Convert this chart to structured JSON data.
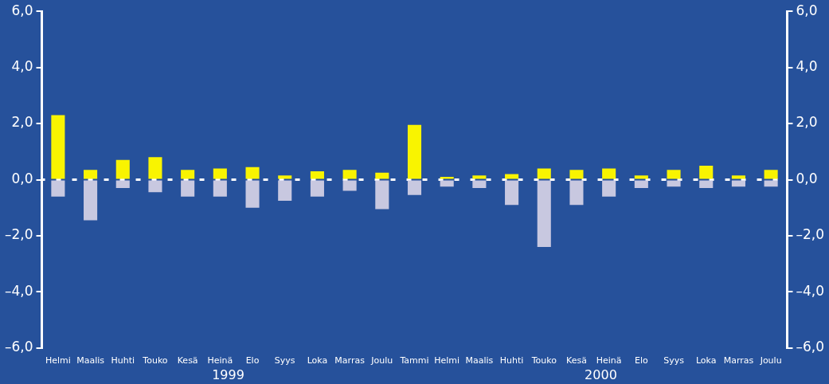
{
  "chart_data": {
    "type": "bar",
    "stacked": true,
    "categories": [
      "Helmi",
      "Maalis",
      "Huhti",
      "Touko",
      "Kesä",
      "Heinä",
      "Elo",
      "Syys",
      "Loka",
      "Marras",
      "Joulu",
      "Tammi",
      "Helmi",
      "Maalis",
      "Huhti",
      "Touko",
      "Kesä",
      "Heinä",
      "Elo",
      "Syys",
      "Loka",
      "Marras",
      "Joulu"
    ],
    "series": [
      {
        "color": "#f9f400",
        "values": [
          2.3,
          0.35,
          0.7,
          0.8,
          0.35,
          0.4,
          0.45,
          0.15,
          0.3,
          0.35,
          0.25,
          1.95,
          0.1,
          0.15,
          0.2,
          0.4,
          0.35,
          0.4,
          0.15,
          0.35,
          0.5,
          0.15,
          0.35
        ]
      },
      {
        "color": "#c8c8e0",
        "values": [
          -0.6,
          -1.45,
          -0.3,
          -0.45,
          -0.6,
          -0.6,
          -1.0,
          -0.75,
          -0.6,
          -0.4,
          -1.05,
          -0.55,
          -0.25,
          -0.3,
          -0.9,
          -2.4,
          -0.9,
          -0.6,
          -0.3,
          -0.25,
          -0.3,
          -0.25,
          -0.25
        ]
      }
    ],
    "ylim": [
      -6,
      6
    ],
    "yticks": [
      {
        "value": -6,
        "label": "–6,0"
      },
      {
        "value": -4,
        "label": "–4,0"
      },
      {
        "value": -2,
        "label": "–2,0"
      },
      {
        "value": 0,
        "label": "0,0"
      },
      {
        "value": 2,
        "label": "2,0"
      },
      {
        "value": 4,
        "label": "4,0"
      },
      {
        "value": 6,
        "label": "6,0"
      }
    ],
    "y2lim": [
      -6,
      6
    ],
    "y2ticks": [
      {
        "value": -6,
        "label": "–6,0"
      },
      {
        "value": -4,
        "label": "–4,0"
      },
      {
        "value": -2,
        "label": "–2,0"
      },
      {
        "value": 0,
        "label": "0,0"
      },
      {
        "value": 2,
        "label": "2,0"
      },
      {
        "value": 4,
        "label": "4,0"
      },
      {
        "value": 6,
        "label": "6,0"
      }
    ],
    "ref_lines": [
      {
        "axis": "y",
        "value": 0,
        "color": "#ffffff",
        "line_style": "dashed"
      }
    ],
    "annotations": [
      "1999",
      "2000"
    ],
    "grid": false,
    "legend": false
  }
}
